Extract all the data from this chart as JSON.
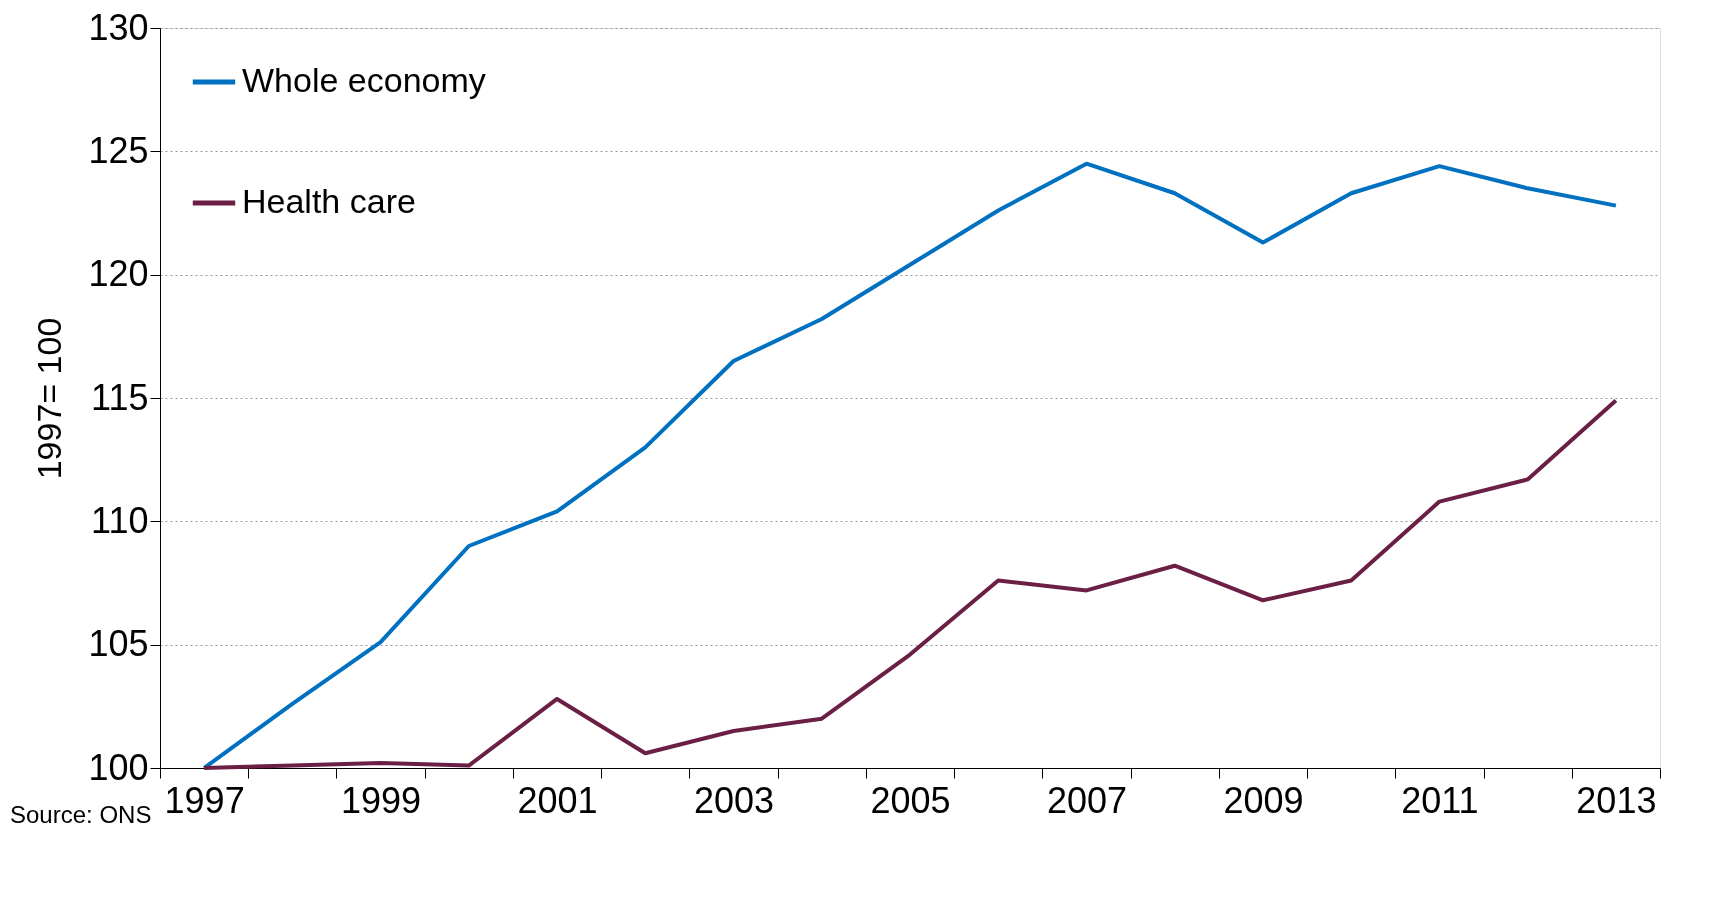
{
  "chart_data": {
    "type": "line",
    "ylabel": "1997= 100",
    "categories": [
      "1997",
      null,
      "1999",
      null,
      "2001",
      null,
      "2003",
      null,
      "2005",
      null,
      "2007",
      null,
      "2009",
      null,
      "2011",
      null,
      "2013"
    ],
    "series": [
      {
        "name": "Whole economy",
        "color": "#0070c0",
        "values": [
          100,
          102.6,
          105.1,
          109.0,
          110.4,
          113.0,
          116.5,
          118.2,
          120.4,
          122.6,
          124.5,
          123.3,
          121.3,
          123.3,
          124.4,
          123.5,
          122.8
        ]
      },
      {
        "name": "Health care",
        "color": "#6b1f45",
        "values": [
          100,
          100.1,
          100.2,
          100.1,
          102.8,
          100.6,
          101.5,
          102.0,
          104.6,
          107.6,
          107.2,
          108.2,
          106.8,
          107.6,
          110.8,
          111.7,
          114.9
        ]
      }
    ],
    "ylim": [
      100,
      130
    ],
    "yticks": [
      100,
      105,
      110,
      115,
      120,
      125,
      130
    ],
    "grid": "y",
    "legend": "top left",
    "marker": "none",
    "line_style": "solid",
    "annotations": [
      "Source: ONS"
    ]
  }
}
